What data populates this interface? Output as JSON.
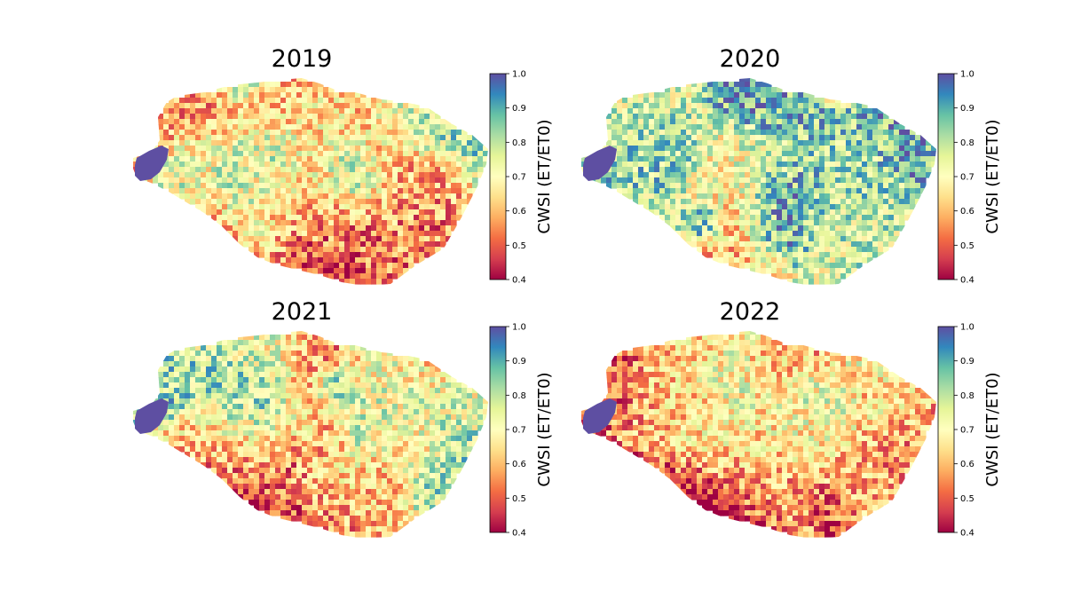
{
  "figure": {
    "panels": [
      {
        "year": "2019",
        "seed": 2019,
        "wet": 0.55,
        "dry_south": 0.95
      },
      {
        "year": "2020",
        "seed": 2020,
        "wet": 0.95,
        "dry_south": 0.55
      },
      {
        "year": "2021",
        "seed": 2021,
        "wet": 0.45,
        "dry_south": 1.2
      },
      {
        "year": "2022",
        "seed": 2022,
        "wet": 0.3,
        "dry_south": 1.45
      }
    ],
    "colorbar": {
      "label": "CWSI (ET/ET0)",
      "ticks": [
        "0.4",
        "0.5",
        "0.6",
        "0.7",
        "0.8",
        "0.9",
        "1.0"
      ],
      "min": 0.4,
      "max": 1.0,
      "colormap": "Spectral",
      "colors": [
        "#9e0142",
        "#d53e4f",
        "#f46d43",
        "#fdae61",
        "#fee08b",
        "#ffffbf",
        "#e6f598",
        "#abdda4",
        "#66c2a5",
        "#3288bd",
        "#5e4fa2"
      ]
    }
  }
}
